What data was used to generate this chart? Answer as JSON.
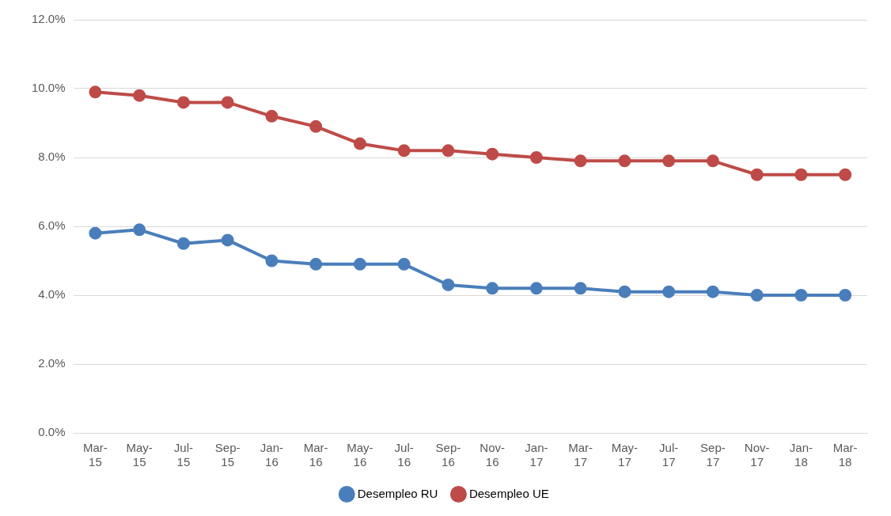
{
  "chart_data": {
    "type": "line",
    "categories": [
      "Mar-15",
      "May-15",
      "Jul-15",
      "Sep-15",
      "Jan-16",
      "Mar-16",
      "May-16",
      "Jul-16",
      "Sep-16",
      "Nov-16",
      "Jan-17",
      "Mar-17",
      "May-17",
      "Jul-17",
      "Sep-17",
      "Nov-17",
      "Jan-18",
      "Mar-18"
    ],
    "series": [
      {
        "name": "Desempleo RU",
        "color": "#4a7ebb",
        "values": [
          5.8,
          5.9,
          5.5,
          5.6,
          5.0,
          4.9,
          4.9,
          4.9,
          4.3,
          4.2,
          4.2,
          4.2,
          4.1,
          4.1,
          4.1,
          4.0,
          4.0,
          4.0
        ]
      },
      {
        "name": "Desempleo UE",
        "color": "#be4b48",
        "values": [
          9.9,
          9.8,
          9.6,
          9.6,
          9.2,
          8.9,
          8.4,
          8.2,
          8.2,
          8.1,
          8.0,
          7.9,
          7.9,
          7.9,
          7.9,
          7.5,
          7.5,
          7.5
        ]
      }
    ],
    "ylim": [
      0,
      12
    ],
    "yticks": [
      {
        "value": 0,
        "label": "0.0%"
      },
      {
        "value": 2,
        "label": "2.0%"
      },
      {
        "value": 4,
        "label": "4.0%"
      },
      {
        "value": 6,
        "label": "6.0%"
      },
      {
        "value": 8,
        "label": "8.0%"
      },
      {
        "value": 10,
        "label": "10.0%"
      },
      {
        "value": 12,
        "label": "12.0%"
      }
    ],
    "grid": "y",
    "legend": "bottom",
    "marker": "circle",
    "line_style": "solid"
  }
}
